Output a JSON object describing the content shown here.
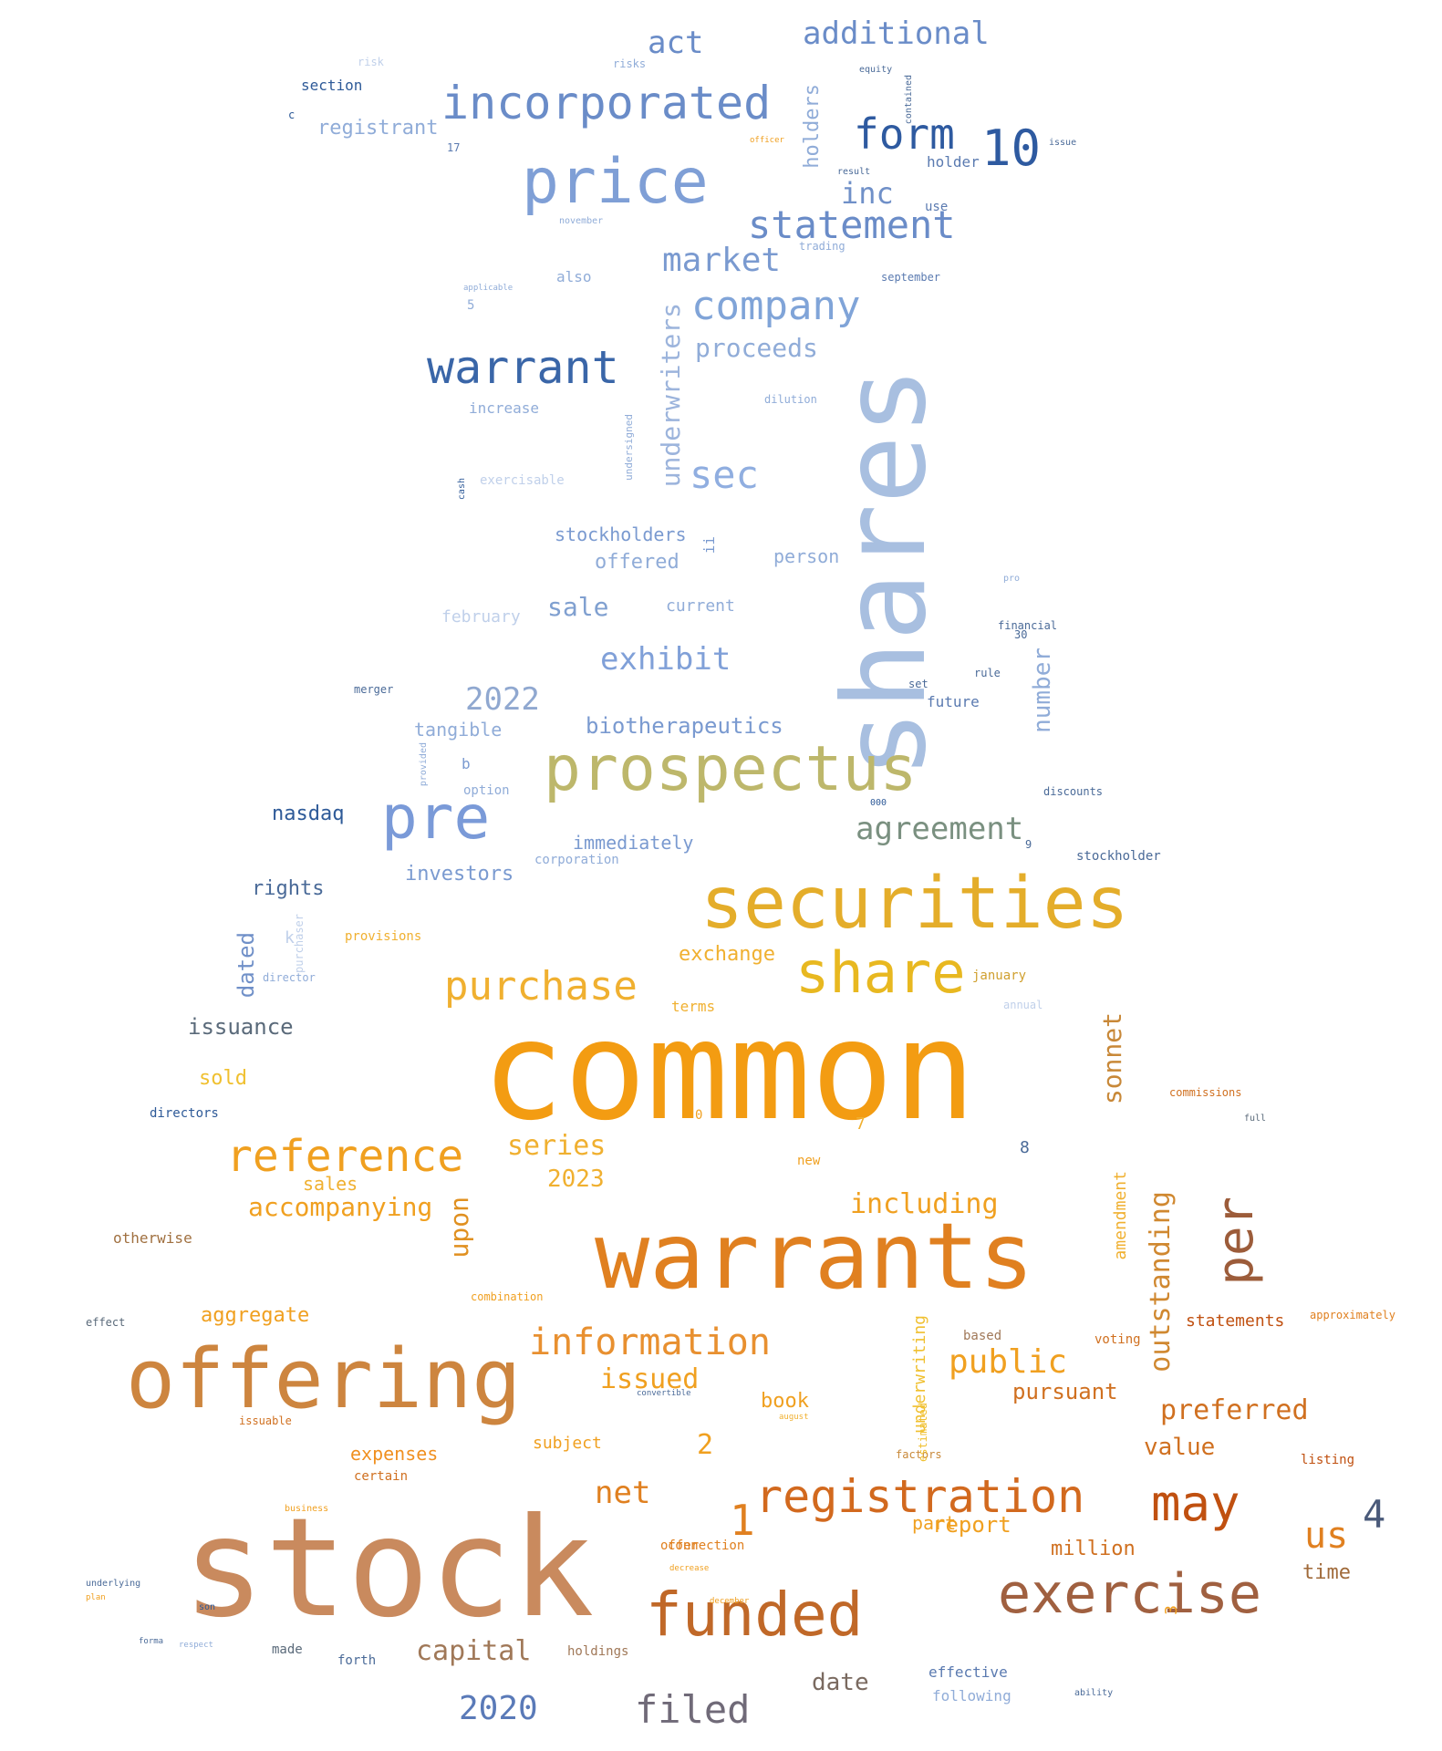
{
  "words": [
    {
      "text": "common",
      "color": "#f39c12"
    },
    {
      "text": "stock",
      "color": "#c98a5e"
    },
    {
      "text": "warrants",
      "color": "#e08020"
    },
    {
      "text": "shares",
      "color": "#a8bfe0"
    },
    {
      "text": "offering",
      "color": "#cd853f"
    },
    {
      "text": "securities",
      "color": "#e4ad2a"
    },
    {
      "text": "prospectus",
      "color": "#bdb76b"
    },
    {
      "text": "price",
      "color": "#7f9fd6"
    },
    {
      "text": "funded",
      "color": "#c06828"
    },
    {
      "text": "exercise",
      "color": "#a06040"
    },
    {
      "text": "registration",
      "color": "#d2691e"
    },
    {
      "text": "share",
      "color": "#e8b820"
    },
    {
      "text": "pre",
      "color": "#7a9ad8"
    },
    {
      "text": "warrant",
      "color": "#3a66a8"
    },
    {
      "text": "incorporated",
      "color": "#6a8cc8"
    },
    {
      "text": "may",
      "color": "#c05010"
    },
    {
      "text": "reference",
      "color": "#f0a020"
    },
    {
      "text": "information",
      "color": "#e89030"
    },
    {
      "text": "purchase",
      "color": "#f0b030"
    },
    {
      "text": "company",
      "color": "#80a4d8"
    },
    {
      "text": "filed",
      "color": "#706a78"
    },
    {
      "text": "statement",
      "color": "#6a8cc8"
    },
    {
      "text": "form",
      "color": "#2e5aa0"
    },
    {
      "text": "10",
      "color": "#2e5aa0"
    },
    {
      "text": "per",
      "color": "#9c5c3a"
    },
    {
      "text": "public",
      "color": "#f0a020"
    },
    {
      "text": "market",
      "color": "#7a9ad0"
    },
    {
      "text": "additional",
      "color": "#6a8cc8"
    },
    {
      "text": "sec",
      "color": "#90aee0"
    },
    {
      "text": "exhibit",
      "color": "#80a0d8"
    },
    {
      "text": "agreement",
      "color": "#7a9080"
    },
    {
      "text": "capital",
      "color": "#a07858"
    },
    {
      "text": "2020",
      "color": "#5a7ab8"
    },
    {
      "text": "2022",
      "color": "#90a8d0"
    },
    {
      "text": "outstanding",
      "color": "#d08830"
    },
    {
      "text": "underwriters",
      "color": "#9cb4dc"
    },
    {
      "text": "us",
      "color": "#e08020"
    },
    {
      "text": "4",
      "color": "#4a5a7a"
    },
    {
      "text": "1",
      "color": "#e08020"
    },
    {
      "text": "act",
      "color": "#6a8cc8"
    },
    {
      "text": "inc",
      "color": "#7090c8"
    },
    {
      "text": "including",
      "color": "#f0a020"
    },
    {
      "text": "preferred",
      "color": "#d07020"
    },
    {
      "text": "accompanying",
      "color": "#f0a020"
    },
    {
      "text": "upon",
      "color": "#e09020"
    },
    {
      "text": "series",
      "color": "#f0b030"
    },
    {
      "text": "issued",
      "color": "#f0a020"
    },
    {
      "text": "sonnet",
      "color": "#c88838"
    },
    {
      "text": "proceeds",
      "color": "#90acd8"
    },
    {
      "text": "holders",
      "color": "#90acd8"
    },
    {
      "text": "number",
      "color": "#90acd8"
    },
    {
      "text": "biotherapeutics",
      "color": "#7a9ad0"
    },
    {
      "text": "nasdaq",
      "color": "#2e5a98"
    },
    {
      "text": "2023",
      "color": "#f0b030"
    },
    {
      "text": "sale",
      "color": "#80a0d0"
    },
    {
      "text": "investors",
      "color": "#7a9ad0"
    },
    {
      "text": "issuance",
      "color": "#5a6a7a"
    },
    {
      "text": "dated",
      "color": "#7090c8"
    },
    {
      "text": "net",
      "color": "#e08020"
    },
    {
      "text": "time",
      "color": "#a06a3a"
    },
    {
      "text": "million",
      "color": "#d07020"
    },
    {
      "text": "value",
      "color": "#d07020"
    },
    {
      "text": "date",
      "color": "#7a6a60"
    },
    {
      "text": "report",
      "color": "#f0a020"
    },
    {
      "text": "pursuant",
      "color": "#d07020"
    },
    {
      "text": "amendment",
      "color": "#f0b030"
    },
    {
      "text": "underwriting",
      "color": "#f0c030"
    },
    {
      "text": "aggregate",
      "color": "#f0a020"
    },
    {
      "text": "expenses",
      "color": "#f09020"
    },
    {
      "text": "statements",
      "color": "#c05010"
    },
    {
      "text": "exchange",
      "color": "#f0b030"
    },
    {
      "text": "rights",
      "color": "#4a6a98"
    },
    {
      "text": "registrant",
      "color": "#90acd8"
    },
    {
      "text": "offered",
      "color": "#90acd8"
    },
    {
      "text": "stockholders",
      "color": "#7a9ad0"
    },
    {
      "text": "person",
      "color": "#90acd8"
    },
    {
      "text": "current",
      "color": "#90acd8"
    },
    {
      "text": "book",
      "color": "#f0a020"
    },
    {
      "text": "subject",
      "color": "#f0a020"
    },
    {
      "text": "sold",
      "color": "#f0c030"
    },
    {
      "text": "sales",
      "color": "#f0b030"
    },
    {
      "text": "tangible",
      "color": "#90acd8"
    },
    {
      "text": "immediately",
      "color": "#7a9ad0"
    },
    {
      "text": "february",
      "color": "#c0d0ea"
    },
    {
      "text": "2",
      "color": "#f0a020"
    },
    {
      "text": "part",
      "color": "#f0a020"
    },
    {
      "text": "3",
      "color": "#f0a020"
    },
    {
      "text": "7",
      "color": "#f0b030"
    },
    {
      "text": "8",
      "color": "#4a6a98"
    },
    {
      "text": "otherwise",
      "color": "#a07040"
    },
    {
      "text": "holder",
      "color": "#5a7ab0"
    },
    {
      "text": "section",
      "color": "#2e5a98"
    },
    {
      "text": "effective",
      "color": "#5a7ab0"
    },
    {
      "text": "following",
      "color": "#90acd8"
    },
    {
      "text": "forth",
      "color": "#4a6a98"
    },
    {
      "text": "holdings",
      "color": "#a07858"
    },
    {
      "text": "made",
      "color": "#5a6a7a"
    },
    {
      "text": "directors",
      "color": "#2e5a98"
    },
    {
      "text": "provisions",
      "color": "#f0b030"
    },
    {
      "text": "new",
      "color": "#f0a020"
    },
    {
      "text": "offer",
      "color": "#e08020"
    },
    {
      "text": "certain",
      "color": "#d07020"
    },
    {
      "text": "terms",
      "color": "#f0b030"
    },
    {
      "text": "corporation",
      "color": "#90acd8"
    },
    {
      "text": "option",
      "color": "#90acd8"
    },
    {
      "text": "future",
      "color": "#5a7ab0"
    },
    {
      "text": "stockholder",
      "color": "#4a6a98"
    },
    {
      "text": "january",
      "color": "#d0a030"
    },
    {
      "text": "connection",
      "color": "#e08020"
    },
    {
      "text": "listing",
      "color": "#c05010"
    },
    {
      "text": "increase",
      "color": "#90acd8"
    },
    {
      "text": "also",
      "color": "#90acd8"
    },
    {
      "text": "use",
      "color": "#5a7ab0"
    },
    {
      "text": "trading",
      "color": "#90acd8"
    },
    {
      "text": "september",
      "color": "#5a7ab0"
    },
    {
      "text": "dilution",
      "color": "#90acd8"
    },
    {
      "text": "exercisable",
      "color": "#c0d0ea"
    },
    {
      "text": "merger",
      "color": "#4a6a98"
    },
    {
      "text": "financial",
      "color": "#4a6a98"
    },
    {
      "text": "rule",
      "color": "#4a6a98"
    },
    {
      "text": "set",
      "color": "#4a6a98"
    },
    {
      "text": "discounts",
      "color": "#4a6a98"
    },
    {
      "text": "annual",
      "color": "#c0d0ea"
    },
    {
      "text": "commissions",
      "color": "#d07020"
    },
    {
      "text": "full",
      "color": "#5a6a7a"
    },
    {
      "text": "effect",
      "color": "#5a6a7a"
    },
    {
      "text": "risks",
      "color": "#90acd8"
    },
    {
      "text": "risk",
      "color": "#c0d0ea"
    },
    {
      "text": "equity",
      "color": "#4a6a98"
    },
    {
      "text": "issue",
      "color": "#4a6a98"
    },
    {
      "text": "k",
      "color": "#c0d0ea"
    },
    {
      "text": "b",
      "color": "#7a9ad0"
    },
    {
      "text": "ii",
      "color": "#7a9ad0"
    },
    {
      "text": "c",
      "color": "#2e5a98"
    },
    {
      "text": "5",
      "color": "#90acd8"
    },
    {
      "text": "9",
      "color": "#4a6a98"
    },
    {
      "text": "30",
      "color": "#4a6a98"
    },
    {
      "text": "17",
      "color": "#5a7ab0"
    },
    {
      "text": "000",
      "color": "#2e5a98"
    },
    {
      "text": "0",
      "color": "#f0a020"
    },
    {
      "text": "based",
      "color": "#a07858"
    },
    {
      "text": "voting",
      "color": "#d07020"
    },
    {
      "text": "approximately",
      "color": "#e08020"
    },
    {
      "text": "business",
      "color": "#f0a020"
    },
    {
      "text": "issuable",
      "color": "#d07020"
    },
    {
      "text": "factors",
      "color": "#c88838"
    },
    {
      "text": "estimated",
      "color": "#f0c030"
    },
    {
      "text": "director",
      "color": "#90acd8"
    },
    {
      "text": "purchaser",
      "color": "#c0d0ea"
    },
    {
      "text": "provided",
      "color": "#90acd8"
    },
    {
      "text": "undersigned",
      "color": "#90acd8"
    },
    {
      "text": "cash",
      "color": "#2e5a98"
    },
    {
      "text": "ability",
      "color": "#4a6a98"
    },
    {
      "text": "underlying",
      "color": "#4a6a98"
    },
    {
      "text": "plan",
      "color": "#f0a020"
    },
    {
      "text": "son",
      "color": "#2e5a98"
    },
    {
      "text": "respect",
      "color": "#90acd8"
    },
    {
      "text": "forma",
      "color": "#4a6a98"
    },
    {
      "text": "pro",
      "color": "#90acd8"
    },
    {
      "text": "contained",
      "color": "#4a6a98"
    },
    {
      "text": "result",
      "color": "#4a6a98"
    },
    {
      "text": "officer",
      "color": "#f0a020"
    },
    {
      "text": "combination",
      "color": "#f0a020"
    },
    {
      "text": "decrease",
      "color": "#f0a020"
    },
    {
      "text": "december",
      "color": "#f0a020"
    },
    {
      "text": "august",
      "color": "#f0b030"
    },
    {
      "text": "convertible",
      "color": "#4a6a98"
    },
    {
      "text": "applicable",
      "color": "#90acd8"
    },
    {
      "text": "november",
      "color": "#90acd8"
    }
  ]
}
